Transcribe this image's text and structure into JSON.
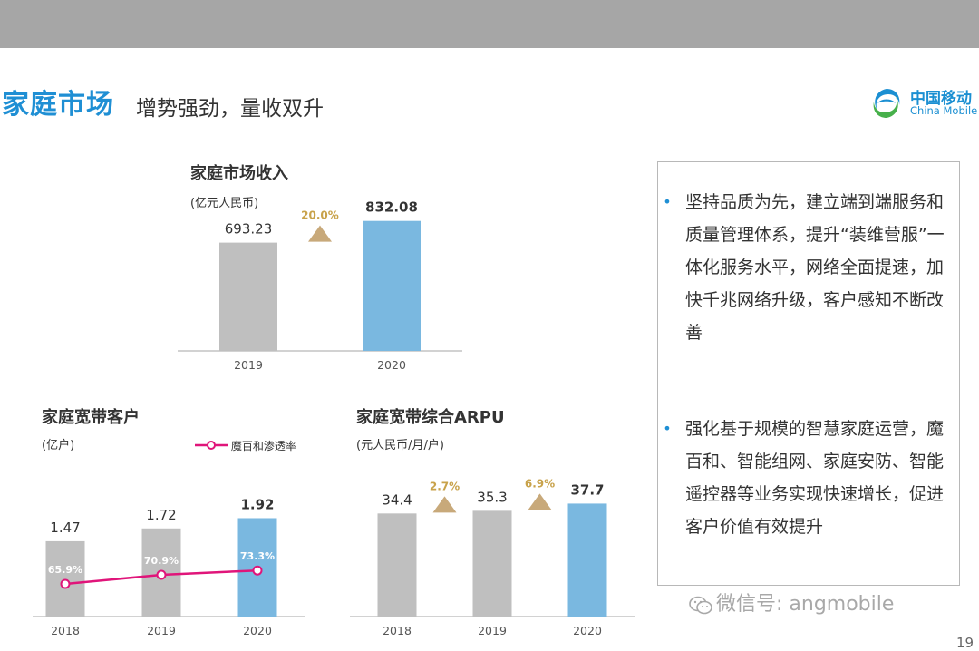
{
  "page": {
    "title_main": "家庭市场",
    "title_sub": "增势强劲，量收双升",
    "logo_cn": "中国移动",
    "logo_en": "China Mobile",
    "page_number": "19",
    "watermark": "微信号: angmobile"
  },
  "colors": {
    "grey_bar": "#bfbfbf",
    "blue_bar": "#7ab8e0",
    "growth_triangle": "#c8a97a",
    "growth_text": "#c8a24a",
    "penetration_line": "#e0157a",
    "title_blue": "#1f8fd4"
  },
  "bullets": [
    "坚持品质为先，建立端到端服务和质量管理体系，提升“装维营服”一体化服务水平，网络全面提速，加快千兆网络升级，客户感知不断改善",
    "强化基于规模的智慧家庭运营，魔百和、智能组网、家庭安防、智能遥控器等业务实现快速增长，促进客户价值有效提升"
  ],
  "chart_data": [
    {
      "type": "bar",
      "title": "家庭市场收入",
      "unit": "(亿元人民币)",
      "categories": [
        "2019",
        "2020"
      ],
      "values": [
        693.23,
        832.08
      ],
      "value_labels": [
        "693.23",
        "832.08"
      ],
      "growth": [
        {
          "label": "20.0%",
          "between": [
            "2019",
            "2020"
          ]
        }
      ],
      "ylim": [
        0,
        900
      ]
    },
    {
      "type": "bar",
      "title": "家庭宽带客户",
      "unit": "(亿户)",
      "categories": [
        "2018",
        "2019",
        "2020"
      ],
      "values": [
        1.47,
        1.72,
        1.92
      ],
      "value_labels": [
        "1.47",
        "1.72",
        "1.92"
      ],
      "ylim": [
        0,
        2.3
      ],
      "line_series": {
        "name": "魔百和渗透率",
        "values": [
          65.9,
          70.9,
          73.3
        ],
        "labels": [
          "65.9%",
          "70.9%",
          "73.3%"
        ]
      }
    },
    {
      "type": "bar",
      "title": "家庭宽带综合ARPU",
      "unit": "(元人民币/月/户)",
      "categories": [
        "2018",
        "2019",
        "2020"
      ],
      "values": [
        34.4,
        35.3,
        37.7
      ],
      "value_labels": [
        "34.4",
        "35.3",
        "37.7"
      ],
      "growth": [
        {
          "label": "2.7%",
          "between": [
            "2018",
            "2019"
          ]
        },
        {
          "label": "6.9%",
          "between": [
            "2019",
            "2020"
          ]
        }
      ],
      "ylim": [
        0,
        46
      ]
    }
  ]
}
